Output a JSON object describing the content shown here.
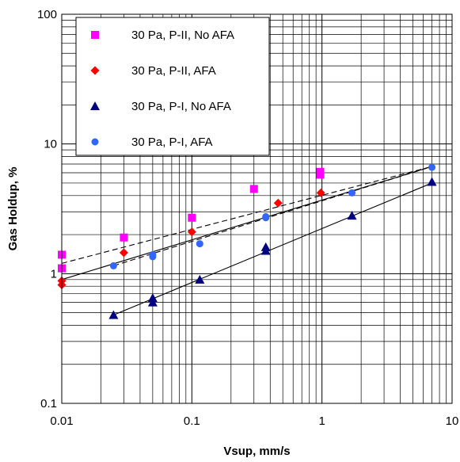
{
  "chart_data": {
    "type": "scatter",
    "xscale": "log",
    "yscale": "log",
    "xlim": [
      0.01,
      10
    ],
    "ylim": [
      0.1,
      100
    ],
    "xlabel": "Vsup, mm/s",
    "ylabel": "Gas Holdup, %",
    "x_ticks": [
      "0.01",
      "0.1",
      "1",
      "10"
    ],
    "y_ticks": [
      "0.1",
      "1",
      "10",
      "100"
    ],
    "grid": true,
    "legend_position": "upper-left",
    "series": [
      {
        "name": "30 Pa, P-II, No AFA",
        "marker": "square",
        "color": "#ff00ff",
        "points": [
          [
            0.01,
            1.4
          ],
          [
            0.01,
            1.1
          ],
          [
            0.03,
            1.9
          ],
          [
            0.1,
            2.7
          ],
          [
            0.3,
            4.5
          ],
          [
            0.97,
            6.1
          ],
          [
            0.97,
            5.8
          ]
        ]
      },
      {
        "name": "30 Pa, P-II, AFA",
        "marker": "diamond",
        "color": "#ff0000",
        "points": [
          [
            0.01,
            0.88
          ],
          [
            0.01,
            0.82
          ],
          [
            0.03,
            1.45
          ],
          [
            0.1,
            2.1
          ],
          [
            0.46,
            3.5
          ],
          [
            0.98,
            4.2
          ]
        ]
      },
      {
        "name": "30 Pa, P-I, No AFA",
        "marker": "triangle",
        "color": "#000080",
        "points": [
          [
            0.025,
            0.48
          ],
          [
            0.05,
            0.65
          ],
          [
            0.05,
            0.6
          ],
          [
            0.115,
            0.9
          ],
          [
            0.37,
            1.6
          ],
          [
            0.37,
            1.5
          ],
          [
            1.7,
            2.8
          ],
          [
            7.0,
            5.1
          ]
        ]
      },
      {
        "name": "30 Pa, P-I, AFA",
        "marker": "circle",
        "color": "#3366ff",
        "points": [
          [
            0.025,
            1.15
          ],
          [
            0.05,
            1.4
          ],
          [
            0.05,
            1.35
          ],
          [
            0.115,
            1.7
          ],
          [
            0.37,
            2.75
          ],
          [
            0.37,
            2.7
          ],
          [
            1.7,
            4.2
          ],
          [
            7.0,
            6.6
          ]
        ]
      }
    ],
    "trendlines": [
      {
        "series": "30 Pa, P-II, No AFA",
        "style": "dashed",
        "from": [
          0.01,
          1.2
        ],
        "to": [
          7.0,
          6.7
        ]
      },
      {
        "series": "30 Pa, P-II, AFA",
        "style": "solid",
        "from": [
          0.01,
          0.9
        ],
        "to": [
          7.0,
          6.7
        ]
      },
      {
        "series": "30 Pa, P-I, No AFA",
        "style": "solid",
        "from": [
          0.025,
          0.48
        ],
        "to": [
          7.0,
          5.0
        ]
      },
      {
        "series": "30 Pa, P-I, AFA",
        "style": "dashed",
        "from": [
          0.025,
          1.15
        ],
        "to": [
          7.0,
          6.7
        ]
      }
    ]
  }
}
